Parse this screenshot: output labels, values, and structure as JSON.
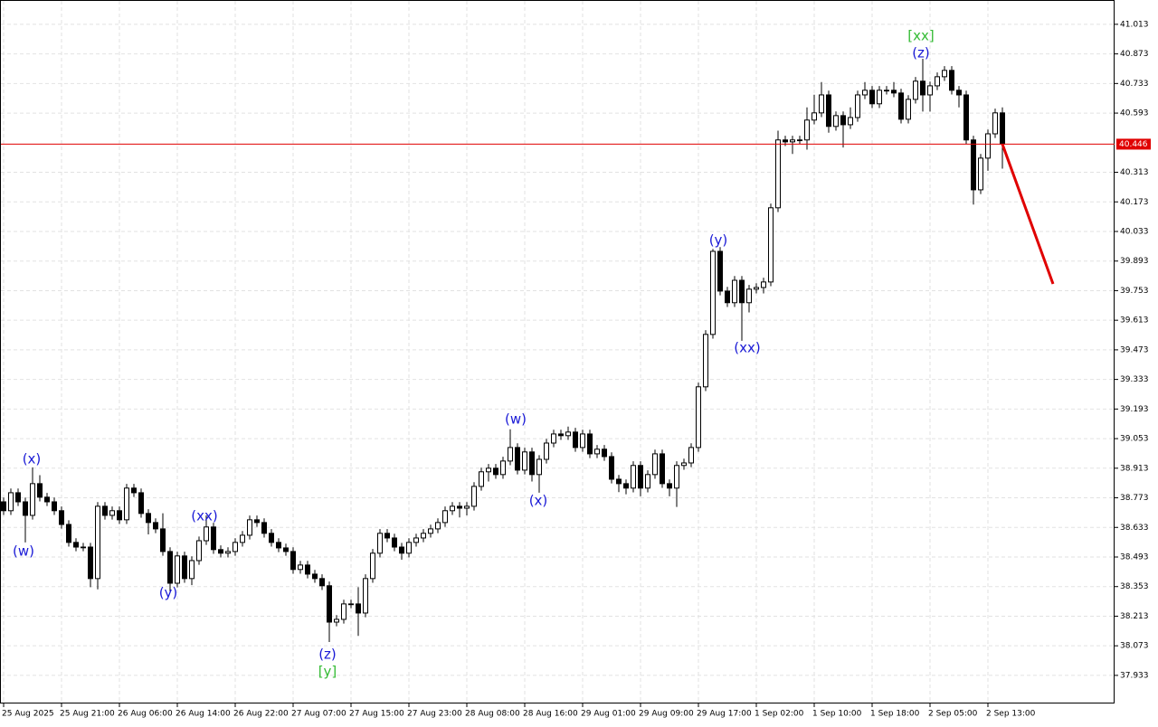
{
  "chart_data": {
    "type": "candlestick",
    "categories": [
      "25 Aug 2025",
      null,
      null,
      null,
      null,
      null,
      null,
      null,
      "25 Aug 21:00",
      null,
      null,
      null,
      null,
      null,
      null,
      null,
      "26 Aug 06:00",
      null,
      null,
      null,
      null,
      null,
      null,
      null,
      "26 Aug 14:00",
      null,
      null,
      null,
      null,
      null,
      null,
      null,
      "26 Aug 22:00",
      null,
      null,
      null,
      null,
      null,
      null,
      null,
      "27 Aug 07:00",
      null,
      null,
      null,
      null,
      null,
      null,
      null,
      "27 Aug 15:00",
      null,
      null,
      null,
      null,
      null,
      null,
      null,
      "27 Aug 23:00",
      null,
      null,
      null,
      null,
      null,
      null,
      null,
      "28 Aug 08:00",
      null,
      null,
      null,
      null,
      null,
      null,
      null,
      "28 Aug 16:00",
      null,
      null,
      null,
      null,
      null,
      null,
      null,
      "29 Aug 01:00",
      null,
      null,
      null,
      null,
      null,
      null,
      null,
      "29 Aug 09:00",
      null,
      null,
      null,
      null,
      null,
      null,
      null,
      "29 Aug 17:00",
      null,
      null,
      null,
      null,
      null,
      null,
      null,
      "1 Sep 02:00",
      null,
      null,
      null,
      null,
      null,
      null,
      null,
      "1 Sep 10:00",
      null,
      null,
      null,
      null,
      null,
      null,
      null,
      "1 Sep 18:00",
      null,
      null,
      null,
      null,
      null,
      null,
      null,
      "2 Sep 05:00",
      null,
      null,
      null,
      null,
      null,
      null,
      null,
      "2 Sep 13:00",
      null,
      null
    ],
    "open": [
      38.754,
      38.712,
      38.797,
      38.754,
      38.69,
      38.84,
      38.776,
      38.754,
      38.712,
      38.647,
      38.562,
      38.54,
      38.54,
      38.391,
      38.733,
      38.69,
      38.712,
      38.669,
      38.819,
      38.797,
      38.699,
      38.656,
      38.626,
      38.519,
      38.369,
      38.498,
      38.391,
      38.476,
      38.57,
      38.635,
      38.528,
      38.511,
      38.519,
      38.562,
      38.596,
      38.669,
      38.656,
      38.605,
      38.562,
      38.536,
      38.519,
      38.434,
      38.455,
      38.412,
      38.391,
      38.357,
      38.185,
      38.198,
      38.271,
      38.271,
      38.228,
      38.391,
      38.511,
      38.605,
      38.583,
      38.54,
      38.511,
      38.562,
      38.583,
      38.605,
      38.626,
      38.656,
      38.712,
      38.733,
      38.724,
      38.733,
      38.827,
      38.896,
      38.913,
      38.883,
      38.947,
      39.011,
      38.904,
      38.99,
      38.883,
      38.955,
      39.032,
      39.075,
      39.067,
      39.084,
      39.011,
      39.075,
      38.981,
      39.003,
      38.968,
      38.861,
      38.84,
      38.819,
      38.926,
      38.819,
      38.883,
      38.981,
      38.84,
      38.819,
      38.926,
      38.938,
      39.011,
      39.298,
      39.546,
      39.939,
      39.751,
      39.696,
      39.802,
      39.696,
      39.76,
      39.768,
      39.794,
      40.145,
      40.466,
      40.457,
      40.466,
      40.466,
      40.56,
      40.594,
      40.679,
      40.53,
      40.581,
      40.538,
      40.572,
      40.679,
      40.701,
      40.637,
      40.701,
      40.701,
      40.688,
      40.564,
      40.658,
      40.744,
      40.679,
      40.722,
      40.765,
      40.795,
      40.701,
      40.679,
      40.466,
      40.23,
      40.38,
      40.495,
      40.594
    ],
    "high": [
      38.774,
      38.817,
      38.817,
      38.774,
      38.917,
      38.88,
      38.796,
      38.774,
      38.732,
      38.667,
      38.582,
      38.56,
      38.56,
      38.753,
      38.753,
      38.732,
      38.732,
      38.839,
      38.839,
      38.817,
      38.719,
      38.676,
      38.7,
      38.539,
      38.518,
      38.518,
      38.496,
      38.59,
      38.69,
      38.655,
      38.548,
      38.539,
      38.582,
      38.616,
      38.689,
      38.689,
      38.676,
      38.625,
      38.582,
      38.556,
      38.539,
      38.475,
      38.475,
      38.432,
      38.411,
      38.377,
      38.218,
      38.291,
      38.291,
      38.35,
      38.411,
      38.531,
      38.625,
      38.625,
      38.603,
      38.56,
      38.582,
      38.603,
      38.625,
      38.646,
      38.676,
      38.732,
      38.753,
      38.753,
      38.753,
      38.847,
      38.916,
      38.933,
      38.933,
      38.967,
      39.097,
      39.031,
      39.01,
      39.01,
      38.975,
      39.052,
      39.095,
      39.095,
      39.11,
      39.104,
      39.095,
      39.095,
      39.023,
      39.023,
      38.988,
      38.881,
      38.86,
      38.946,
      38.946,
      38.903,
      39.001,
      39.001,
      38.86,
      38.946,
      38.958,
      39.031,
      39.318,
      39.566,
      39.95,
      39.959,
      39.771,
      39.822,
      39.822,
      39.78,
      39.788,
      39.814,
      40.165,
      40.51,
      40.486,
      40.486,
      40.486,
      40.62,
      40.68,
      40.74,
      40.699,
      40.601,
      40.601,
      40.62,
      40.699,
      40.74,
      40.721,
      40.721,
      40.721,
      40.74,
      40.708,
      40.678,
      40.764,
      40.85,
      40.742,
      40.785,
      40.815,
      40.815,
      40.721,
      40.699,
      40.486,
      40.4,
      40.515,
      40.614,
      40.62
    ],
    "low": [
      38.692,
      38.692,
      38.734,
      38.562,
      38.67,
      38.756,
      38.734,
      38.692,
      38.627,
      38.542,
      38.52,
      38.52,
      38.35,
      38.34,
      38.67,
      38.67,
      38.649,
      38.649,
      38.777,
      38.679,
      38.6,
      38.606,
      38.499,
      38.33,
      38.349,
      38.371,
      38.36,
      38.456,
      38.55,
      38.508,
      38.491,
      38.491,
      38.499,
      38.542,
      38.576,
      38.636,
      38.585,
      38.542,
      38.516,
      38.499,
      38.414,
      38.414,
      38.392,
      38.371,
      38.337,
      38.091,
      38.165,
      38.178,
      38.251,
      38.12,
      38.208,
      38.371,
      38.491,
      38.563,
      38.52,
      38.48,
      38.491,
      38.542,
      38.563,
      38.585,
      38.606,
      38.636,
      38.692,
      38.68,
      38.69,
      38.713,
      38.807,
      38.85,
      38.863,
      38.863,
      38.927,
      38.884,
      38.884,
      38.85,
      38.797,
      38.935,
      39.012,
      39.047,
      39.047,
      38.991,
      38.991,
      38.961,
      38.961,
      38.948,
      38.841,
      38.8,
      38.79,
      38.799,
      38.78,
      38.799,
      38.863,
      38.82,
      38.78,
      38.73,
      38.906,
      38.918,
      38.991,
      39.278,
      39.526,
      39.731,
      39.676,
      39.676,
      39.516,
      39.65,
      39.74,
      39.74,
      39.774,
      40.125,
      40.437,
      40.4,
      40.446,
      40.42,
      40.54,
      40.574,
      40.5,
      40.51,
      40.43,
      40.518,
      40.552,
      40.659,
      40.617,
      40.617,
      40.681,
      40.668,
      40.544,
      40.544,
      40.638,
      40.6,
      40.6,
      40.702,
      40.745,
      40.681,
      40.62,
      40.446,
      40.16,
      40.21,
      40.32,
      40.475,
      40.33
    ],
    "close": [
      38.712,
      38.797,
      38.754,
      38.69,
      38.84,
      38.776,
      38.754,
      38.712,
      38.647,
      38.562,
      38.54,
      38.54,
      38.391,
      38.733,
      38.69,
      38.712,
      38.669,
      38.819,
      38.797,
      38.699,
      38.656,
      38.626,
      38.519,
      38.369,
      38.498,
      38.391,
      38.476,
      38.57,
      38.635,
      38.528,
      38.511,
      38.519,
      38.562,
      38.596,
      38.669,
      38.656,
      38.605,
      38.562,
      38.536,
      38.519,
      38.434,
      38.455,
      38.412,
      38.391,
      38.357,
      38.185,
      38.198,
      38.271,
      38.271,
      38.228,
      38.391,
      38.511,
      38.605,
      38.583,
      38.54,
      38.511,
      38.562,
      38.583,
      38.605,
      38.626,
      38.656,
      38.712,
      38.733,
      38.724,
      38.733,
      38.827,
      38.896,
      38.913,
      38.883,
      38.947,
      39.011,
      38.904,
      38.99,
      38.883,
      38.955,
      39.032,
      39.075,
      39.067,
      39.084,
      39.011,
      39.075,
      38.981,
      39.003,
      38.968,
      38.861,
      38.84,
      38.819,
      38.926,
      38.819,
      38.883,
      38.981,
      38.84,
      38.819,
      38.926,
      38.938,
      39.011,
      39.298,
      39.546,
      39.939,
      39.751,
      39.696,
      39.802,
      39.696,
      39.76,
      39.768,
      39.794,
      40.145,
      40.466,
      40.457,
      40.466,
      40.466,
      40.56,
      40.594,
      40.679,
      40.53,
      40.581,
      40.538,
      40.572,
      40.679,
      40.701,
      40.637,
      40.701,
      40.701,
      40.688,
      40.564,
      40.658,
      40.744,
      40.679,
      40.722,
      40.765,
      40.795,
      40.701,
      40.679,
      40.466,
      40.23,
      40.38,
      40.495,
      40.594,
      40.446
    ],
    "up_color": "#ffffff",
    "down_color": "#000000",
    "ylim": [
      37.8,
      41.128
    ],
    "yticks": [
      41.013,
      40.873,
      40.733,
      40.593,
      40.313,
      40.173,
      40.033,
      39.893,
      39.753,
      39.613,
      39.473,
      39.333,
      39.193,
      39.053,
      38.913,
      38.773,
      38.633,
      38.493,
      38.353,
      38.213,
      38.073,
      37.933
    ],
    "grid": true,
    "current_price": {
      "value": 40.446,
      "color": "#e00000"
    },
    "forecast": {
      "color": "#e00000",
      "values": [
        40.446,
        39.785
      ]
    },
    "annotations": [
      {
        "text": "(x)",
        "color": "#1a1ad6"
      },
      {
        "text": "(w)",
        "color": "#1a1ad6"
      },
      {
        "text": "(y)",
        "color": "#1a1ad6"
      },
      {
        "text": "(xx)",
        "color": "#1a1ad6"
      },
      {
        "text": "(z)",
        "color": "#1a1ad6"
      },
      {
        "text": "[y]",
        "color": "#33bb33"
      },
      {
        "text": "(w)",
        "color": "#1a1ad6"
      },
      {
        "text": "(x)",
        "color": "#1a1ad6"
      },
      {
        "text": "(y)",
        "color": "#1a1ad6"
      },
      {
        "text": "(xx)",
        "color": "#1a1ad6"
      },
      {
        "text": "(z)",
        "color": "#1a1ad6"
      },
      {
        "text": "[xx]",
        "color": "#33bb33"
      }
    ]
  }
}
